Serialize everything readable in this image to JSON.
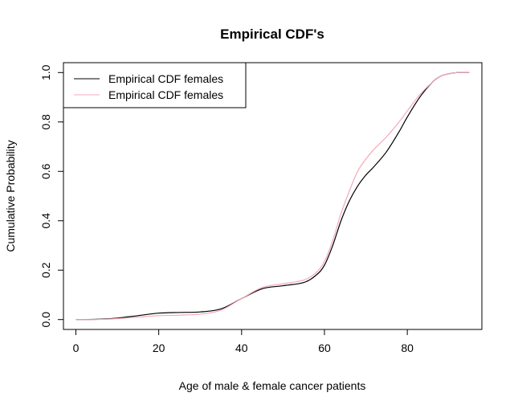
{
  "chart_data": {
    "type": "line",
    "title": "Empirical CDF's",
    "xlabel": "Age of male & female cancer patients",
    "ylabel": "Cumulative Probability",
    "xlim": [
      -3,
      98
    ],
    "ylim": [
      -0.04,
      1.04
    ],
    "xticks": [
      0,
      20,
      40,
      60,
      80
    ],
    "yticks": [
      0.0,
      0.2,
      0.4,
      0.6,
      0.8,
      1.0
    ],
    "ytick_labels": [
      "0.0",
      "0.2",
      "0.4",
      "0.6",
      "0.8",
      "1.0"
    ],
    "grid": false,
    "legend_position": "top-left",
    "series": [
      {
        "name": "Empirical CDF females",
        "color": "#000000",
        "x": [
          0,
          5,
          10,
          15,
          20,
          25,
          30,
          35,
          40,
          45,
          50,
          55,
          58,
          60,
          62,
          64,
          66,
          68,
          70,
          72,
          75,
          78,
          80,
          83,
          86,
          88,
          90,
          92,
          95
        ],
        "y": [
          0.0,
          0.001,
          0.006,
          0.016,
          0.026,
          0.029,
          0.031,
          0.043,
          0.085,
          0.125,
          0.137,
          0.15,
          0.18,
          0.22,
          0.3,
          0.4,
          0.48,
          0.54,
          0.585,
          0.62,
          0.68,
          0.76,
          0.82,
          0.9,
          0.96,
          0.985,
          0.995,
          1.0,
          1.0
        ]
      },
      {
        "name": "Empirical CDF females",
        "color": "#f4a9b8",
        "x": [
          0,
          5,
          10,
          15,
          20,
          25,
          30,
          35,
          40,
          45,
          50,
          55,
          58,
          60,
          62,
          64,
          66,
          68,
          70,
          72,
          75,
          78,
          80,
          83,
          86,
          88,
          90,
          92,
          95
        ],
        "y": [
          0.0,
          0.0,
          0.004,
          0.01,
          0.016,
          0.018,
          0.022,
          0.038,
          0.085,
          0.13,
          0.145,
          0.16,
          0.19,
          0.235,
          0.32,
          0.43,
          0.52,
          0.6,
          0.65,
          0.69,
          0.74,
          0.8,
          0.845,
          0.91,
          0.96,
          0.985,
          0.995,
          1.0,
          1.0
        ]
      }
    ]
  }
}
